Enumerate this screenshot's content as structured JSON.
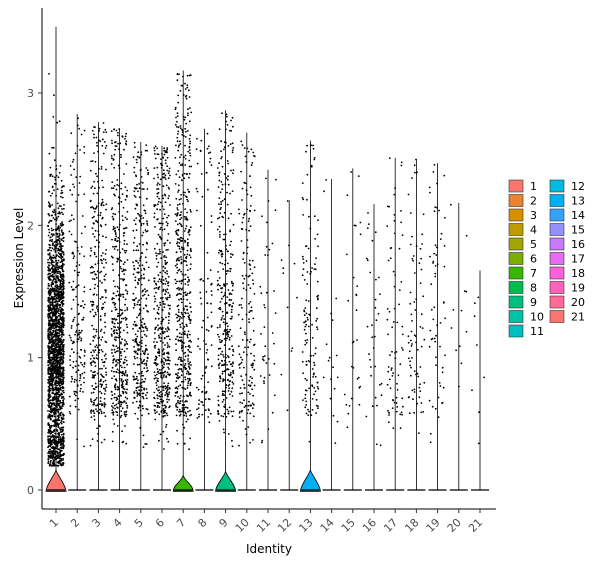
{
  "chart_data": {
    "type": "violin",
    "xlabel": "Identity",
    "ylabel": "Expression Level",
    "ylim": [
      -0.15,
      3.55
    ],
    "yticks": [
      0,
      1,
      2,
      3
    ],
    "categories": [
      "1",
      "2",
      "3",
      "4",
      "5",
      "6",
      "7",
      "8",
      "9",
      "10",
      "11",
      "12",
      "13",
      "14",
      "15",
      "16",
      "17",
      "18",
      "19",
      "20",
      "21"
    ],
    "colors": [
      "#F8766D",
      "#EA8331",
      "#D89000",
      "#C09B00",
      "#A3A500",
      "#7CAE00",
      "#39B600",
      "#00BB4E",
      "#00BF7D",
      "#00C1A3",
      "#00BFC4",
      "#00BAE0",
      "#00B0F6",
      "#35A2FF",
      "#9590FF",
      "#C77CFF",
      "#E76BF3",
      "#FA62DB",
      "#FF62BC",
      "#FF6A98",
      "#F8766D"
    ],
    "max_values": [
      3.5,
      2.84,
      2.78,
      2.73,
      2.63,
      2.6,
      3.17,
      2.73,
      2.87,
      2.7,
      2.42,
      2.19,
      2.64,
      2.35,
      2.43,
      2.16,
      2.51,
      2.5,
      2.47,
      2.17,
      1.66
    ],
    "violin_peak_height": [
      0.15,
      0,
      0,
      0,
      0,
      0,
      0.11,
      0,
      0.14,
      0,
      0,
      0,
      0.15,
      0,
      0,
      0,
      0,
      0,
      0,
      0,
      0
    ],
    "point_density": [
      2200,
      170,
      330,
      420,
      330,
      450,
      520,
      95,
      330,
      170,
      40,
      12,
      130,
      18,
      30,
      35,
      75,
      75,
      60,
      12,
      8
    ],
    "legend_position": "right",
    "grid": false
  }
}
